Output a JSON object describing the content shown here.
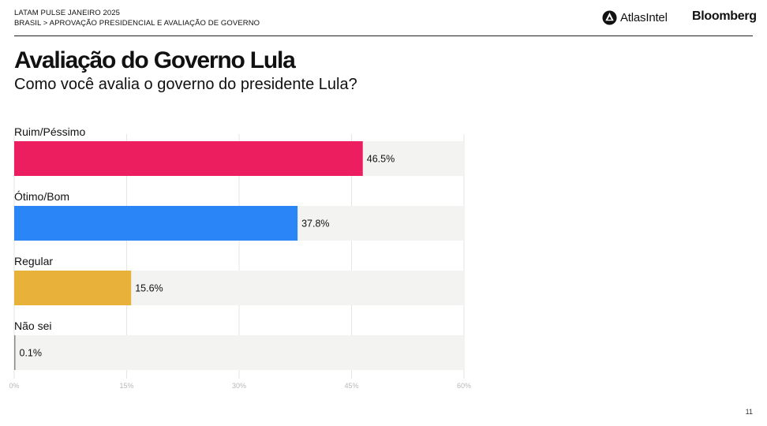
{
  "header": {
    "line1": "LATAM PULSE JANEIRO 2025",
    "line2": "BRASIL > APROVAÇÃO PRESIDENCIAL E AVALIAÇÃO DE GOVERNO"
  },
  "logos": {
    "atlas_text": "AtlasIntel",
    "atlas_icon": "atlasintel-logo-icon",
    "bloomberg": "Bloomberg"
  },
  "title": "Avaliação do Governo Lula",
  "subtitle": "Como você avalia o governo do presidente Lula?",
  "page_number": "11",
  "chart_data": {
    "type": "bar",
    "orientation": "horizontal",
    "categories": [
      "Ruim/Péssimo",
      "Ótimo/Bom",
      "Regular",
      "Não sei"
    ],
    "values": [
      46.5,
      37.8,
      15.6,
      0.1
    ],
    "value_labels": [
      "46.5%",
      "37.8%",
      "15.6%",
      "0.1%"
    ],
    "colors": [
      "#ED1E5F",
      "#2A86F7",
      "#E8B23A",
      "#8a8a8a"
    ],
    "track_color": "#F3F3F1",
    "xlim": [
      0,
      60
    ],
    "xticks": [
      0,
      15,
      30,
      45,
      60
    ],
    "xtick_labels": [
      "0%",
      "15%",
      "30%",
      "45%",
      "60%"
    ],
    "grid": true
  }
}
